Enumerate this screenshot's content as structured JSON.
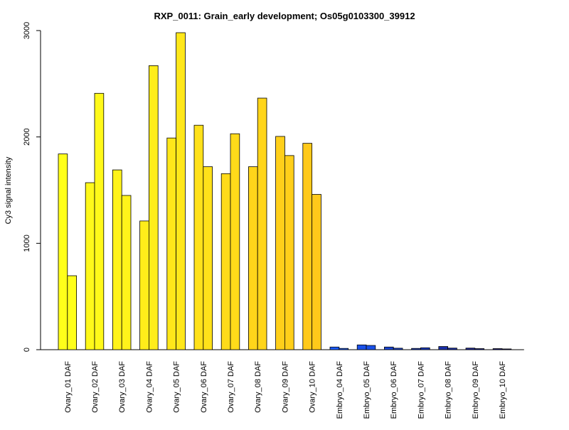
{
  "chart_data": {
    "type": "bar",
    "title": "RXP_0011: Grain_early development; Os05g0103300_39912",
    "xlabel": "",
    "ylabel": "Cy3 signal intensity",
    "ylim": [
      0,
      3000
    ],
    "yticks": [
      0,
      1000,
      2000,
      3000
    ],
    "grid": false,
    "legend": "none",
    "categories": [
      "Ovary_01 DAF",
      "Ovary_02 DAF",
      "Ovary_03 DAF",
      "Ovary_04 DAF",
      "Ovary_05 DAF",
      "Ovary_06 DAF",
      "Ovary_07 DAF",
      "Ovary_08 DAF",
      "Ovary_09 DAF",
      "Ovary_10 DAF",
      "Embryo_04 DAF",
      "Embryo_05 DAF",
      "Embryo_06 DAF",
      "Embryo_07 DAF",
      "Embryo_08 DAF",
      "Embryo_09 DAF",
      "Embryo_10 DAF"
    ],
    "series": [
      {
        "values": [
          1840,
          1570,
          1690,
          1210,
          1990,
          2110,
          1655,
          1720,
          2005,
          1940,
          25,
          45,
          25,
          12,
          30,
          15,
          10
        ]
      },
      {
        "values": [
          695,
          2410,
          1450,
          2670,
          2980,
          1720,
          2030,
          2365,
          1825,
          1460,
          12,
          40,
          14,
          18,
          15,
          10,
          7
        ]
      }
    ],
    "colors": {
      "ovary_start": "#ffff1a",
      "ovary_end": "#ffc91a",
      "embryo_start": "#1a5cff",
      "embryo_end": "#1a1a80",
      "bar_border": "#000000",
      "axis": "#000000"
    }
  }
}
